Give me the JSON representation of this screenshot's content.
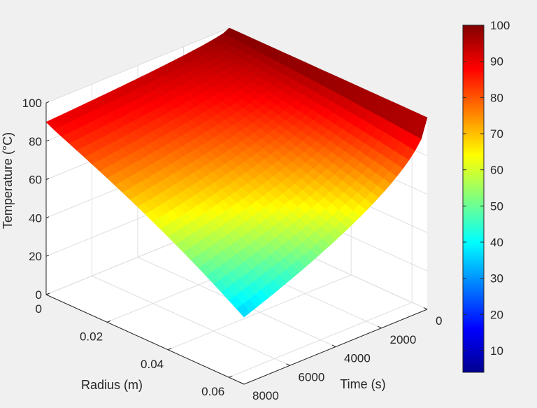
{
  "chart_data": {
    "type": "surface",
    "xlabel": "Radius (m)",
    "ylabel": "Time (s)",
    "zlabel": "Temperature (°C)",
    "xlim": [
      0,
      0.065
    ],
    "ylim": [
      0,
      8000
    ],
    "zlim": [
      0,
      100
    ],
    "x_ticks": [
      "0",
      "0.02",
      "0.04",
      "0.06"
    ],
    "y_ticks": [
      "0",
      "2000",
      "4000",
      "6000",
      "8000"
    ],
    "z_ticks": [
      "0",
      "20",
      "40",
      "60",
      "80",
      "100"
    ],
    "colormap": "jet",
    "colorbar_ticks": [
      "10",
      "20",
      "30",
      "40",
      "50",
      "60",
      "70",
      "80",
      "90",
      "100"
    ],
    "colorbar_range": [
      4,
      100
    ],
    "grid": true,
    "surface": {
      "radius": [
        0,
        0.0325,
        0.065
      ],
      "time": [
        0,
        8000
      ],
      "description_values": {
        "t0": [
          100,
          100,
          100
        ],
        "t8000": [
          90,
          52,
          35
        ]
      }
    }
  }
}
